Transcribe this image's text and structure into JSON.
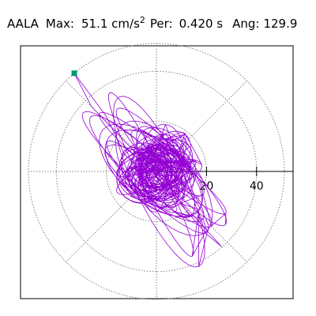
{
  "title": {
    "station": "AALA",
    "max_label": "Max:",
    "max_value": "51.1 cm/s",
    "max_exp": "2",
    "per_label": "Per:",
    "per_value": "0.420 s",
    "ang_label": "Ang:",
    "ang_value": "129.9"
  },
  "chart_data": {
    "type": "scatter",
    "subtype": "polar-orbit",
    "title": "AALA   Max:   51.1 cm/s2  Per:  0.420 s   Ang: 129.9",
    "units": "cm/s2",
    "radial_ticks": [
      20,
      40
    ],
    "rmax": 51.1,
    "rings": [
      20,
      40
    ],
    "spokes_deg": [
      0,
      45,
      90,
      135,
      180,
      225,
      270,
      315
    ],
    "grid": true,
    "peak": {
      "x": -32.8,
      "y": 39.2
    },
    "peak_angle_deg": 129.9,
    "trace_color": "#9400d3",
    "marker_color": "#009973",
    "grid_color": "#808080"
  }
}
